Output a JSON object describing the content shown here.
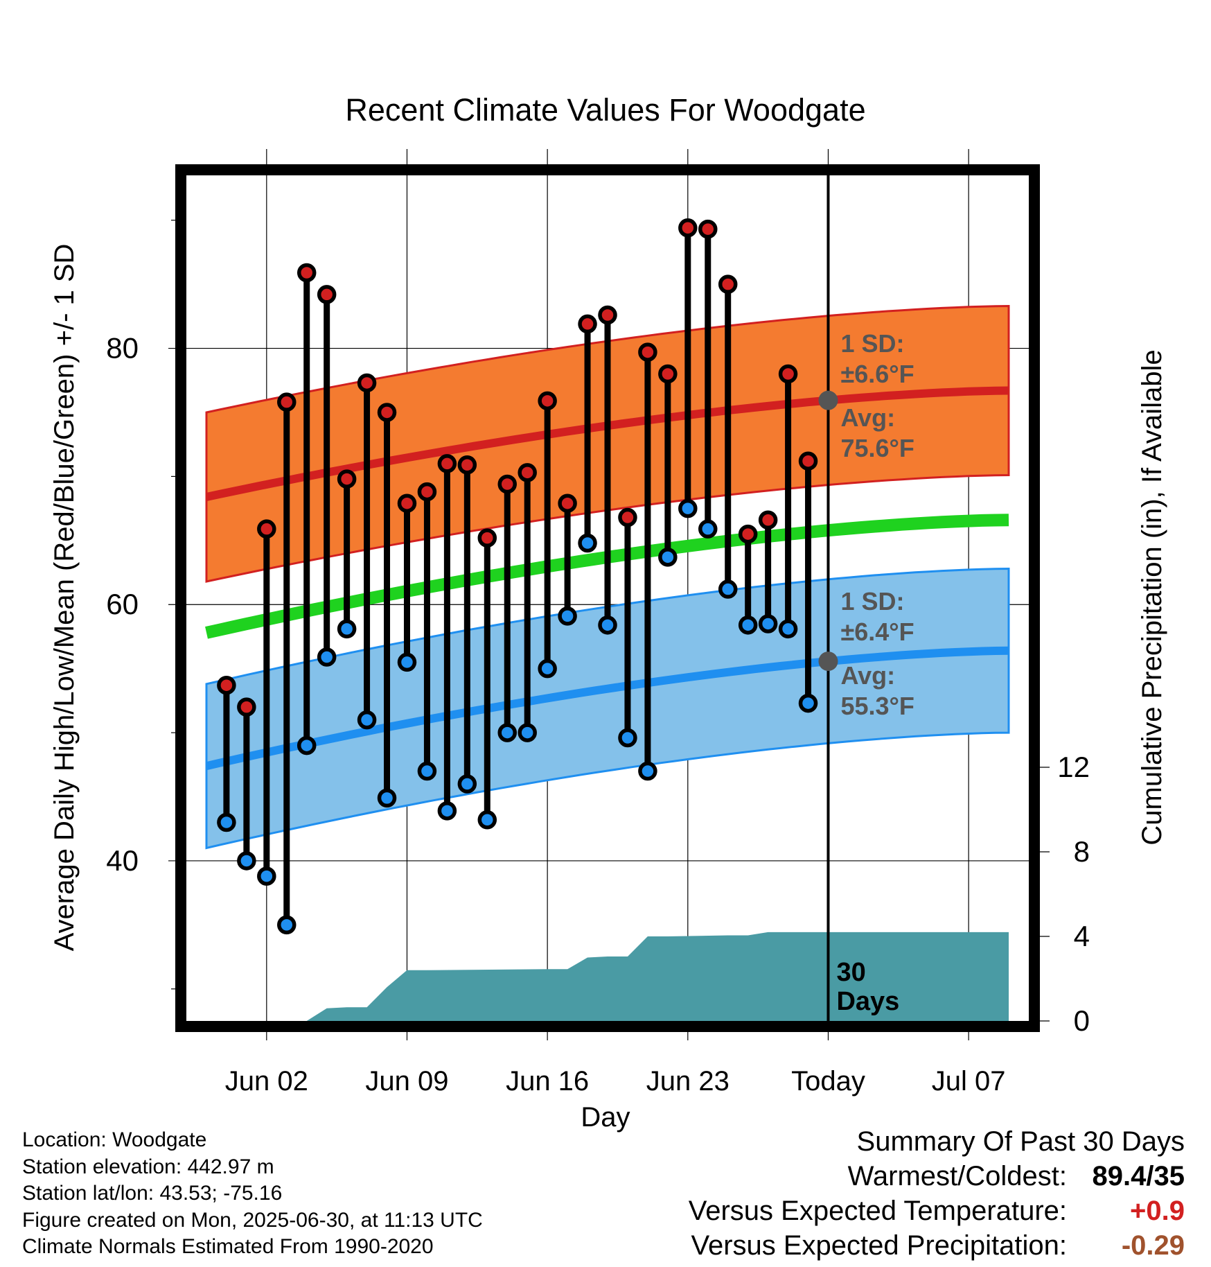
{
  "chart_data": {
    "type": "line",
    "title": "Recent Climate Values For Woodgate",
    "xlabel": "Day",
    "ylabel": "Average Daily High/Low/Mean (Red/Blue/Green) +/- 1 SD",
    "y2label": "Cumulative Precipitation (in), If Available",
    "x_tick_labels": [
      "Jun 02",
      "Jun 09",
      "Jun 16",
      "Jun 23",
      "Today",
      "Jul 07"
    ],
    "x_tick_dates": [
      "2025-06-02",
      "2025-06-09",
      "2025-06-16",
      "2025-06-23",
      "2025-06-30",
      "2025-07-07"
    ],
    "xlim": [
      "2025-05-29",
      "2025-07-10"
    ],
    "y_tick_labels": [
      "40",
      "60",
      "80"
    ],
    "ylim": [
      27.5,
      93.5
    ],
    "y2_tick_labels": [
      "0",
      "4",
      "8",
      "12"
    ],
    "y2lim": [
      0,
      40
    ],
    "grid": true,
    "today_marker": {
      "date": "2025-06-30",
      "label_line1": "30",
      "label_line2": "Days"
    },
    "colors": {
      "high": "#d22020",
      "low": "#1f8ff0",
      "mean": "#1fd21f",
      "high_band": "#f47b30",
      "low_band": "#84c1ea",
      "precip": "#4a9ba4",
      "marker_text": "#555555",
      "warm_value": "#d22020",
      "dry_value": "#a0522d"
    },
    "dates": [
      "2025-05-31",
      "2025-06-01",
      "2025-06-02",
      "2025-06-03",
      "2025-06-04",
      "2025-06-05",
      "2025-06-06",
      "2025-06-07",
      "2025-06-08",
      "2025-06-09",
      "2025-06-10",
      "2025-06-11",
      "2025-06-12",
      "2025-06-13",
      "2025-06-14",
      "2025-06-15",
      "2025-06-16",
      "2025-06-17",
      "2025-06-18",
      "2025-06-19",
      "2025-06-20",
      "2025-06-21",
      "2025-06-22",
      "2025-06-23",
      "2025-06-24",
      "2025-06-25",
      "2025-06-26",
      "2025-06-27",
      "2025-06-28",
      "2025-06-29"
    ],
    "series": [
      {
        "name": "High",
        "values": [
          53.7,
          52.0,
          65.9,
          75.8,
          85.9,
          84.2,
          69.8,
          77.3,
          75.0,
          67.9,
          68.8,
          71.0,
          70.9,
          65.2,
          69.4,
          70.3,
          75.9,
          67.9,
          81.9,
          82.6,
          66.8,
          79.7,
          78.0,
          89.4,
          89.3,
          85.0,
          65.5,
          66.6,
          78.0,
          71.2
        ]
      },
      {
        "name": "Low",
        "values": [
          43.0,
          40.0,
          38.8,
          35.0,
          49.0,
          55.9,
          58.1,
          51.0,
          44.9,
          55.5,
          47.0,
          43.9,
          46.0,
          43.2,
          50.0,
          50.0,
          55.0,
          59.1,
          64.8,
          58.4,
          49.6,
          47.0,
          63.7,
          67.5,
          65.9,
          61.2,
          58.4,
          58.5,
          58.1,
          52.3
        ]
      }
    ],
    "normals": {
      "dates": [
        "2025-05-30",
        "2025-07-09"
      ],
      "avg_high": [
        68.4,
        76.7
      ],
      "avg_low": [
        47.4,
        56.4
      ],
      "avg_mean": [
        57.8,
        66.6
      ],
      "high_sd": 6.6,
      "low_sd": 6.4
    },
    "precipitation": {
      "dates": [
        "2025-05-30",
        "2025-06-02",
        "2025-06-03",
        "2025-06-04",
        "2025-06-05",
        "2025-06-06",
        "2025-06-07",
        "2025-06-08",
        "2025-06-09",
        "2025-06-10",
        "2025-06-16",
        "2025-06-17",
        "2025-06-18",
        "2025-06-19",
        "2025-06-20",
        "2025-06-21",
        "2025-06-22",
        "2025-06-25",
        "2025-06-26",
        "2025-06-27",
        "2025-06-28",
        "2025-06-29",
        "2025-06-30",
        "2025-07-09"
      ],
      "values": [
        0,
        0,
        0,
        0,
        0.6,
        0.65,
        0.65,
        1.6,
        2.4,
        2.4,
        2.45,
        2.45,
        3.0,
        3.05,
        3.05,
        4.0,
        4.0,
        4.05,
        4.05,
        4.2,
        4.2,
        4.2,
        4.2,
        4.2
      ]
    },
    "annotations": {
      "high_sd_label": "1 SD:",
      "high_sd_value": "±6.6°F",
      "high_avg_label": "Avg:",
      "high_avg_value": "75.6°F",
      "low_sd_label": "1 SD:",
      "low_sd_value": "±6.4°F",
      "low_avg_label": "Avg:",
      "low_avg_value": "55.3°F"
    }
  },
  "footer": {
    "location": "Location: Woodgate",
    "elevation": "Station elevation: 442.97 m",
    "latlon": "Station lat/lon: 43.53; -75.16",
    "created": "Figure created on Mon, 2025-06-30, at 11:13 UTC",
    "normals": "Climate Normals Estimated From 1990-2020"
  },
  "summary": {
    "heading": "Summary Of Past 30 Days",
    "warmest_label": "Warmest/Coldest:",
    "warmest_value": "89.4/35",
    "temp_label": "Versus Expected Temperature:",
    "temp_value": "+0.9",
    "precip_label": "Versus Expected Precipitation:",
    "precip_value": "-0.29"
  }
}
